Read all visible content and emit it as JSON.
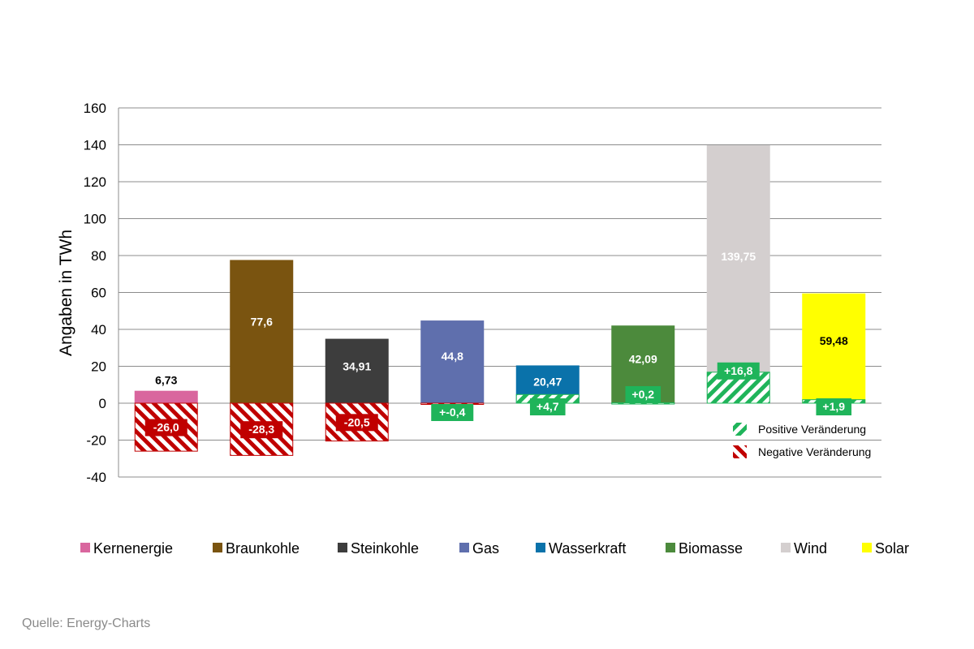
{
  "chart_data": {
    "type": "bar",
    "title": "",
    "xlabel": "",
    "ylabel": "Angaben in TWh",
    "ylim": [
      -40,
      160
    ],
    "yticks": [
      -40,
      -20,
      0,
      20,
      40,
      60,
      80,
      100,
      120,
      140,
      160
    ],
    "grid": true,
    "legend_position": "bottom",
    "categories": [
      "Kernenergie",
      "Braunkohle",
      "Steinkohle",
      "Gas",
      "Wasserkraft",
      "Biomasse",
      "Wind",
      "Solar"
    ],
    "colors": [
      "#d9669e",
      "#7a5410",
      "#3d3d3d",
      "#5f6fad",
      "#0a72aa",
      "#4c8a3c",
      "#d4cfcf",
      "#ffff00"
    ],
    "series": [
      {
        "name": "",
        "values": [
          6.73,
          77.6,
          34.91,
          44.8,
          20.47,
          42.09,
          139.75,
          59.48
        ],
        "labels": [
          "6,73",
          "77,6",
          "34,91",
          "44,8",
          "20,47",
          "42,09",
          "139,75",
          "59,48"
        ]
      },
      {
        "name": "Veränderung",
        "values": [
          -26.0,
          -28.3,
          -20.5,
          -0.4,
          4.7,
          0.2,
          16.8,
          1.9
        ],
        "labels": [
          "-26,0",
          "-28,3",
          "-20,5",
          "+-0,4",
          "+4,7",
          "+0,2",
          "+16,8",
          "+1,9"
        ]
      }
    ],
    "change_legend": {
      "positive": "Positive Veränderung",
      "negative": "Negative Veränderung",
      "positive_color": "#1fb45a",
      "negative_color": "#c00000"
    }
  },
  "source": "Quelle: Energy-Charts"
}
